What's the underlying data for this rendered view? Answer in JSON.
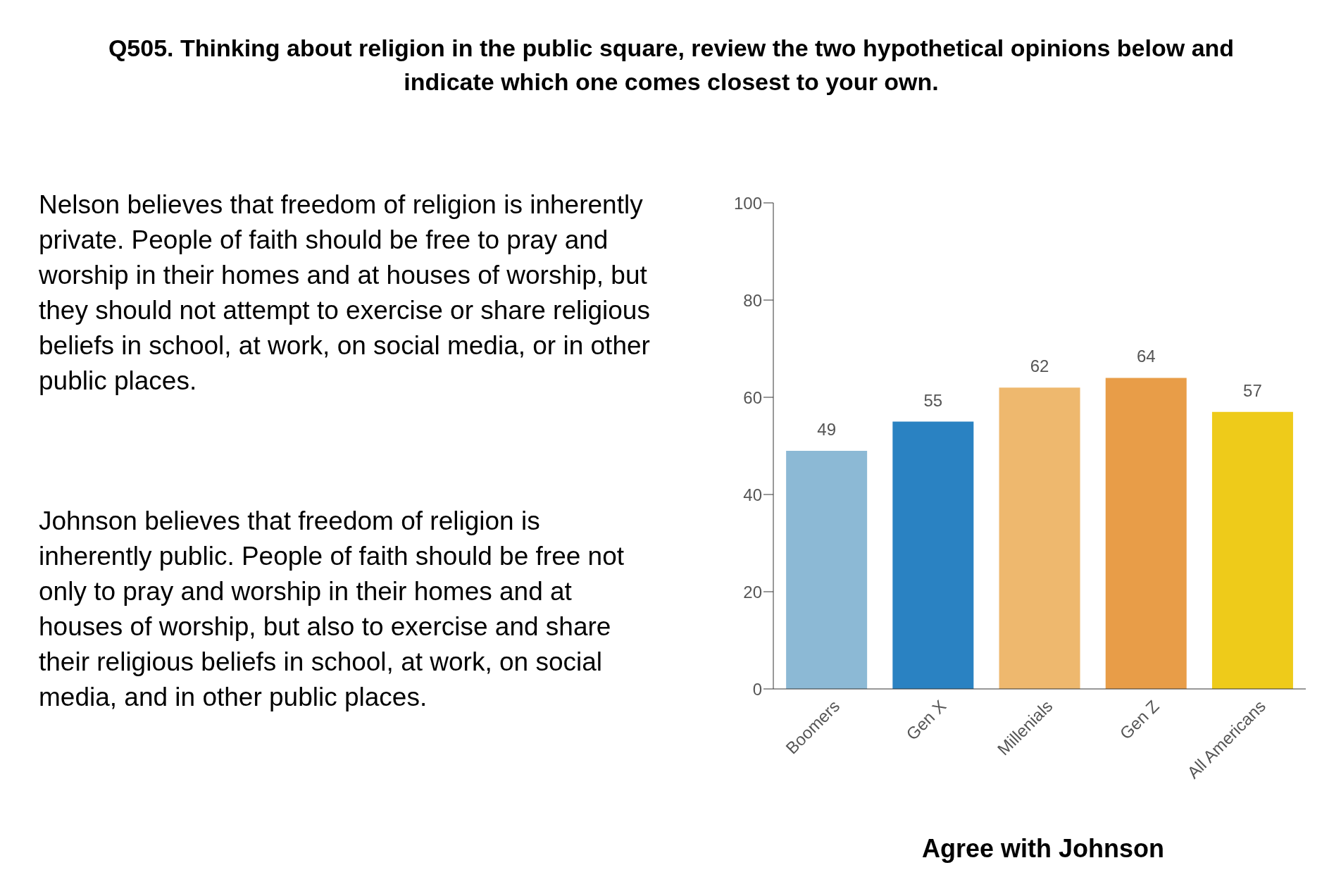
{
  "chart_data": {
    "type": "bar",
    "title": "Q505. Thinking about religion in the public square, review the two hypothetical opinions below and indicate which one comes closest to your own.",
    "xlabel": "Agree with Johnson",
    "categories": [
      "Boomers",
      "Gen X",
      "Millenials",
      "Gen Z",
      "All Americans"
    ],
    "values": [
      49,
      55,
      62,
      64,
      57
    ],
    "colors": [
      "#8cb9d5",
      "#2a82c2",
      "#eeb86e",
      "#e89d48",
      "#eecb1a"
    ],
    "ylim": [
      0,
      100
    ],
    "yticks": [
      0,
      20,
      40,
      60,
      80,
      100
    ],
    "grid": false,
    "legend": false,
    "data_labels": true,
    "annotations": [
      "Nelson believes that freedom of religion is inherently private. People of faith should be free to pray and worship in their homes and at houses of worship, but they should not attempt to exercise or share religious beliefs in school, at work, on social media, or in other public places.",
      "Johnson believes that freedom of religion is inherently public. People of faith should be free not only to pray and worship in their homes and at houses of worship, but also to exercise and share their religious beliefs in school, at work, on social media, and in other public places."
    ]
  }
}
